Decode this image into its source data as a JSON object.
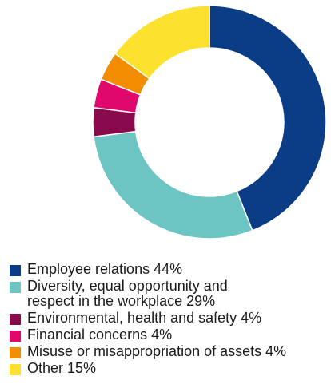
{
  "chart_data": {
    "type": "pie",
    "title": "",
    "categories": [
      "Employee relations",
      "Diversity, equal opportunity and respect in the workplace",
      "Environmental, health and safety",
      "Financial concerns",
      "Misuse or misappropriation of assets",
      "Other"
    ],
    "values": [
      44,
      29,
      4,
      4,
      4,
      15
    ],
    "colors": [
      "#0b3d87",
      "#6cc5c3",
      "#8a0a4e",
      "#e0086d",
      "#f28c00",
      "#fce12e"
    ],
    "donut": true,
    "legend_position": "bottom-left",
    "legend": [
      "Employee relations 44%",
      "Diversity, equal opportunity and\nrespect in the workplace 29%",
      "Environmental, health and safety 4%",
      "Financial concerns 4%",
      "Misuse or misappropriation of assets 4%",
      "Other 15%"
    ]
  }
}
